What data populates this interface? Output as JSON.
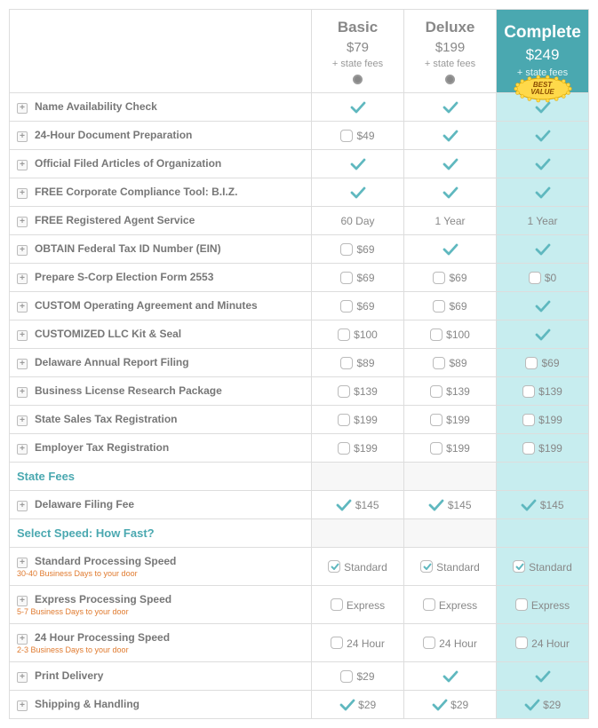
{
  "plans": [
    {
      "name": "Basic",
      "price": "$79",
      "sub": "+ state fees",
      "highlight": false
    },
    {
      "name": "Deluxe",
      "price": "$199",
      "sub": "+ state fees",
      "highlight": false
    },
    {
      "name": "Complete",
      "price": "$249",
      "sub": "+ state fees",
      "highlight": true,
      "badge": {
        "line1": "BEST",
        "line2": "VALUE"
      }
    }
  ],
  "check_color": "#5fb8bf",
  "rows": [
    {
      "label": "Name Availability Check",
      "expand": true,
      "cells": [
        {
          "type": "check"
        },
        {
          "type": "check"
        },
        {
          "type": "check"
        }
      ]
    },
    {
      "label": "24-Hour Document Preparation",
      "expand": true,
      "cells": [
        {
          "type": "checkbox",
          "text": "$49"
        },
        {
          "type": "check"
        },
        {
          "type": "check"
        }
      ]
    },
    {
      "label": "Official Filed Articles of Organization",
      "expand": true,
      "cells": [
        {
          "type": "check"
        },
        {
          "type": "check"
        },
        {
          "type": "check"
        }
      ]
    },
    {
      "label": "FREE Corporate Compliance Tool: B.I.Z.",
      "expand": true,
      "cells": [
        {
          "type": "check"
        },
        {
          "type": "check"
        },
        {
          "type": "check"
        }
      ]
    },
    {
      "label": "FREE Registered Agent Service",
      "expand": true,
      "cells": [
        {
          "type": "text",
          "text": "60 Day"
        },
        {
          "type": "text",
          "text": "1 Year"
        },
        {
          "type": "text",
          "text": "1 Year"
        }
      ]
    },
    {
      "label": "OBTAIN Federal Tax ID Number (EIN)",
      "expand": true,
      "cells": [
        {
          "type": "checkbox",
          "text": "$69"
        },
        {
          "type": "check"
        },
        {
          "type": "check"
        }
      ]
    },
    {
      "label": "Prepare S-Corp Election Form 2553",
      "expand": true,
      "cells": [
        {
          "type": "checkbox",
          "text": "$69"
        },
        {
          "type": "checkbox",
          "text": "$69"
        },
        {
          "type": "checkbox",
          "text": "$0"
        }
      ]
    },
    {
      "label": "CUSTOM Operating Agreement and Minutes",
      "expand": true,
      "cells": [
        {
          "type": "checkbox",
          "text": "$69"
        },
        {
          "type": "checkbox",
          "text": "$69"
        },
        {
          "type": "check"
        }
      ]
    },
    {
      "label": "CUSTOMIZED LLC Kit & Seal",
      "expand": true,
      "cells": [
        {
          "type": "checkbox",
          "text": "$100"
        },
        {
          "type": "checkbox",
          "text": "$100"
        },
        {
          "type": "check"
        }
      ]
    },
    {
      "label": "Delaware Annual Report Filing",
      "expand": true,
      "cells": [
        {
          "type": "checkbox",
          "text": "$89"
        },
        {
          "type": "checkbox",
          "text": "$89"
        },
        {
          "type": "checkbox",
          "text": "$69"
        }
      ]
    },
    {
      "label": "Business License Research Package",
      "expand": true,
      "cells": [
        {
          "type": "checkbox",
          "text": "$139"
        },
        {
          "type": "checkbox",
          "text": "$139"
        },
        {
          "type": "checkbox",
          "text": "$139"
        }
      ]
    },
    {
      "label": "State Sales Tax Registration",
      "expand": true,
      "cells": [
        {
          "type": "checkbox",
          "text": "$199"
        },
        {
          "type": "checkbox",
          "text": "$199"
        },
        {
          "type": "checkbox",
          "text": "$199"
        }
      ]
    },
    {
      "label": "Employer Tax Registration",
      "expand": true,
      "cells": [
        {
          "type": "checkbox",
          "text": "$199"
        },
        {
          "type": "checkbox",
          "text": "$199"
        },
        {
          "type": "checkbox",
          "text": "$199"
        }
      ]
    },
    {
      "type": "section",
      "label": "State Fees"
    },
    {
      "label": "Delaware Filing Fee",
      "expand": true,
      "cells": [
        {
          "type": "check_text",
          "text": "$145"
        },
        {
          "type": "check_text",
          "text": "$145"
        },
        {
          "type": "check_text",
          "text": "$145"
        }
      ]
    },
    {
      "type": "section",
      "label": "Select Speed: How Fast?"
    },
    {
      "label": "Standard Processing Speed",
      "sub": "30-40 Business Days to your door",
      "expand": true,
      "cells": [
        {
          "type": "checkbox",
          "checked": true,
          "text": "Standard"
        },
        {
          "type": "checkbox",
          "checked": true,
          "text": "Standard"
        },
        {
          "type": "checkbox",
          "checked": true,
          "text": "Standard"
        }
      ]
    },
    {
      "label": "Express Processing Speed",
      "sub": "5-7 Business Days to your door",
      "expand": true,
      "cells": [
        {
          "type": "checkbox",
          "text": "Express"
        },
        {
          "type": "checkbox",
          "text": "Express"
        },
        {
          "type": "checkbox",
          "text": "Express"
        }
      ]
    },
    {
      "label": "24 Hour Processing Speed",
      "sub": "2-3 Business Days to your door",
      "expand": true,
      "cells": [
        {
          "type": "checkbox",
          "text": "24 Hour"
        },
        {
          "type": "checkbox",
          "text": "24 Hour"
        },
        {
          "type": "checkbox",
          "text": "24 Hour"
        }
      ]
    },
    {
      "label": "Print Delivery",
      "expand": true,
      "cells": [
        {
          "type": "checkbox",
          "text": "$29"
        },
        {
          "type": "check"
        },
        {
          "type": "check"
        }
      ]
    },
    {
      "label": "Shipping & Handling",
      "expand": true,
      "cells": [
        {
          "type": "check_text",
          "text": "$29"
        },
        {
          "type": "check_text",
          "text": "$29"
        },
        {
          "type": "check_text",
          "text": "$29"
        }
      ]
    }
  ]
}
